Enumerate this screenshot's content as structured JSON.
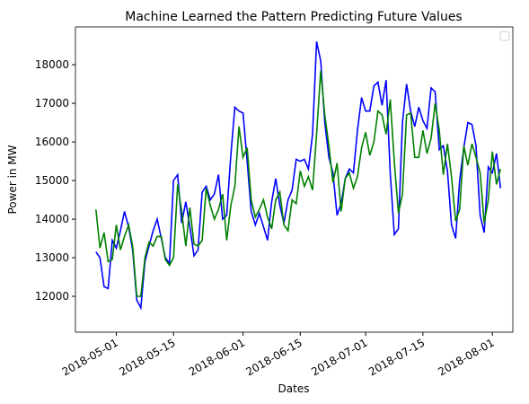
{
  "chart_data": {
    "type": "line",
    "title": "Machine Learned the Pattern Predicting Future Values",
    "x_label": "Dates",
    "y_label": "Power in MW",
    "legend": "upper right",
    "x": [
      "2018-04-26",
      "2018-04-27",
      "2018-04-28",
      "2018-04-29",
      "2018-04-30",
      "2018-05-01",
      "2018-05-02",
      "2018-05-03",
      "2018-05-04",
      "2018-05-05",
      "2018-05-06",
      "2018-05-07",
      "2018-05-08",
      "2018-05-09",
      "2018-05-10",
      "2018-05-11",
      "2018-05-12",
      "2018-05-13",
      "2018-05-14",
      "2018-05-15",
      "2018-05-16",
      "2018-05-17",
      "2018-05-18",
      "2018-05-19",
      "2018-05-20",
      "2018-05-21",
      "2018-05-22",
      "2018-05-23",
      "2018-05-24",
      "2018-05-25",
      "2018-05-26",
      "2018-05-27",
      "2018-05-28",
      "2018-05-29",
      "2018-05-30",
      "2018-05-31",
      "2018-06-01",
      "2018-06-02",
      "2018-06-03",
      "2018-06-04",
      "2018-06-05",
      "2018-06-06",
      "2018-06-07",
      "2018-06-08",
      "2018-06-09",
      "2018-06-10",
      "2018-06-11",
      "2018-06-12",
      "2018-06-13",
      "2018-06-14",
      "2018-06-15",
      "2018-06-16",
      "2018-06-17",
      "2018-06-18",
      "2018-06-19",
      "2018-06-20",
      "2018-06-21",
      "2018-06-22",
      "2018-06-23",
      "2018-06-24",
      "2018-06-25",
      "2018-06-26",
      "2018-06-27",
      "2018-06-28",
      "2018-06-29",
      "2018-06-30",
      "2018-07-01",
      "2018-07-02",
      "2018-07-03",
      "2018-07-04",
      "2018-07-05",
      "2018-07-06",
      "2018-07-07",
      "2018-07-08",
      "2018-07-09",
      "2018-07-10",
      "2018-07-11",
      "2018-07-12",
      "2018-07-13",
      "2018-07-14",
      "2018-07-15",
      "2018-07-16",
      "2018-07-17",
      "2018-07-18",
      "2018-07-19",
      "2018-07-20",
      "2018-07-21",
      "2018-07-22",
      "2018-07-23",
      "2018-07-24",
      "2018-07-25",
      "2018-07-26",
      "2018-07-27",
      "2018-07-28",
      "2018-07-29",
      "2018-07-30",
      "2018-07-31",
      "2018-08-01",
      "2018-08-02",
      "2018-08-03"
    ],
    "series": [
      {
        "color": "#0000ff",
        "values": [
          13150,
          13000,
          12250,
          12200,
          13450,
          13250,
          13700,
          14200,
          13800,
          13200,
          11900,
          11700,
          12900,
          13300,
          13700,
          14000,
          13500,
          13000,
          12850,
          15000,
          15150,
          13900,
          14450,
          13800,
          13050,
          13200,
          14700,
          14850,
          14500,
          14650,
          15150,
          14000,
          14100,
          15650,
          16900,
          16800,
          16750,
          15500,
          14200,
          13850,
          14150,
          13800,
          13450,
          14450,
          15050,
          14350,
          13900,
          14500,
          14750,
          15550,
          15500,
          15550,
          15300,
          16200,
          18600,
          18100,
          16500,
          15600,
          15200,
          14100,
          14400,
          15050,
          15300,
          15200,
          16300,
          17150,
          16800,
          16800,
          17450,
          17550,
          16950,
          17600,
          15200,
          13600,
          13750,
          16500,
          17500,
          16800,
          16400,
          16900,
          16550,
          16350,
          17400,
          17300,
          15800,
          15900,
          15250,
          13850,
          13500,
          15000,
          15850,
          16500,
          16450,
          15900,
          14100,
          13650,
          15350,
          15200,
          15700,
          14800
        ]
      },
      {
        "color": "#008000",
        "values": [
          14250,
          13250,
          13650,
          12900,
          12950,
          13850,
          13200,
          13550,
          13850,
          13300,
          12000,
          12000,
          13000,
          13400,
          13300,
          13550,
          13550,
          12950,
          12800,
          13000,
          14900,
          14200,
          13300,
          14300,
          13350,
          13300,
          13450,
          14800,
          14350,
          14000,
          14250,
          14650,
          13450,
          14350,
          14850,
          16400,
          15600,
          15850,
          14500,
          14050,
          14250,
          14500,
          14050,
          13750,
          14500,
          14700,
          13850,
          13700,
          14500,
          14400,
          15250,
          14850,
          15100,
          14750,
          16200,
          17850,
          16700,
          15900,
          14950,
          15450,
          14200,
          15050,
          15200,
          14800,
          15100,
          15850,
          16250,
          15650,
          16000,
          16800,
          16700,
          16200,
          17100,
          15500,
          14150,
          14650,
          16700,
          16750,
          15600,
          15600,
          16300,
          15700,
          16100,
          17000,
          16300,
          15150,
          15950,
          15100,
          13950,
          14250,
          15900,
          15400,
          15950,
          15600,
          15200,
          13900,
          14500,
          15750,
          14900,
          15300
        ]
      }
    ],
    "xlim": [
      "2018-04-21",
      "2018-08-06"
    ],
    "xticks": [
      "2018-05-01",
      "2018-05-15",
      "2018-06-01",
      "2018-06-15",
      "2018-07-01",
      "2018-07-15",
      "2018-08-01"
    ],
    "ylim": [
      11070,
      18980
    ],
    "yticks": [
      12000,
      13000,
      14000,
      15000,
      16000,
      17000,
      18000
    ]
  }
}
